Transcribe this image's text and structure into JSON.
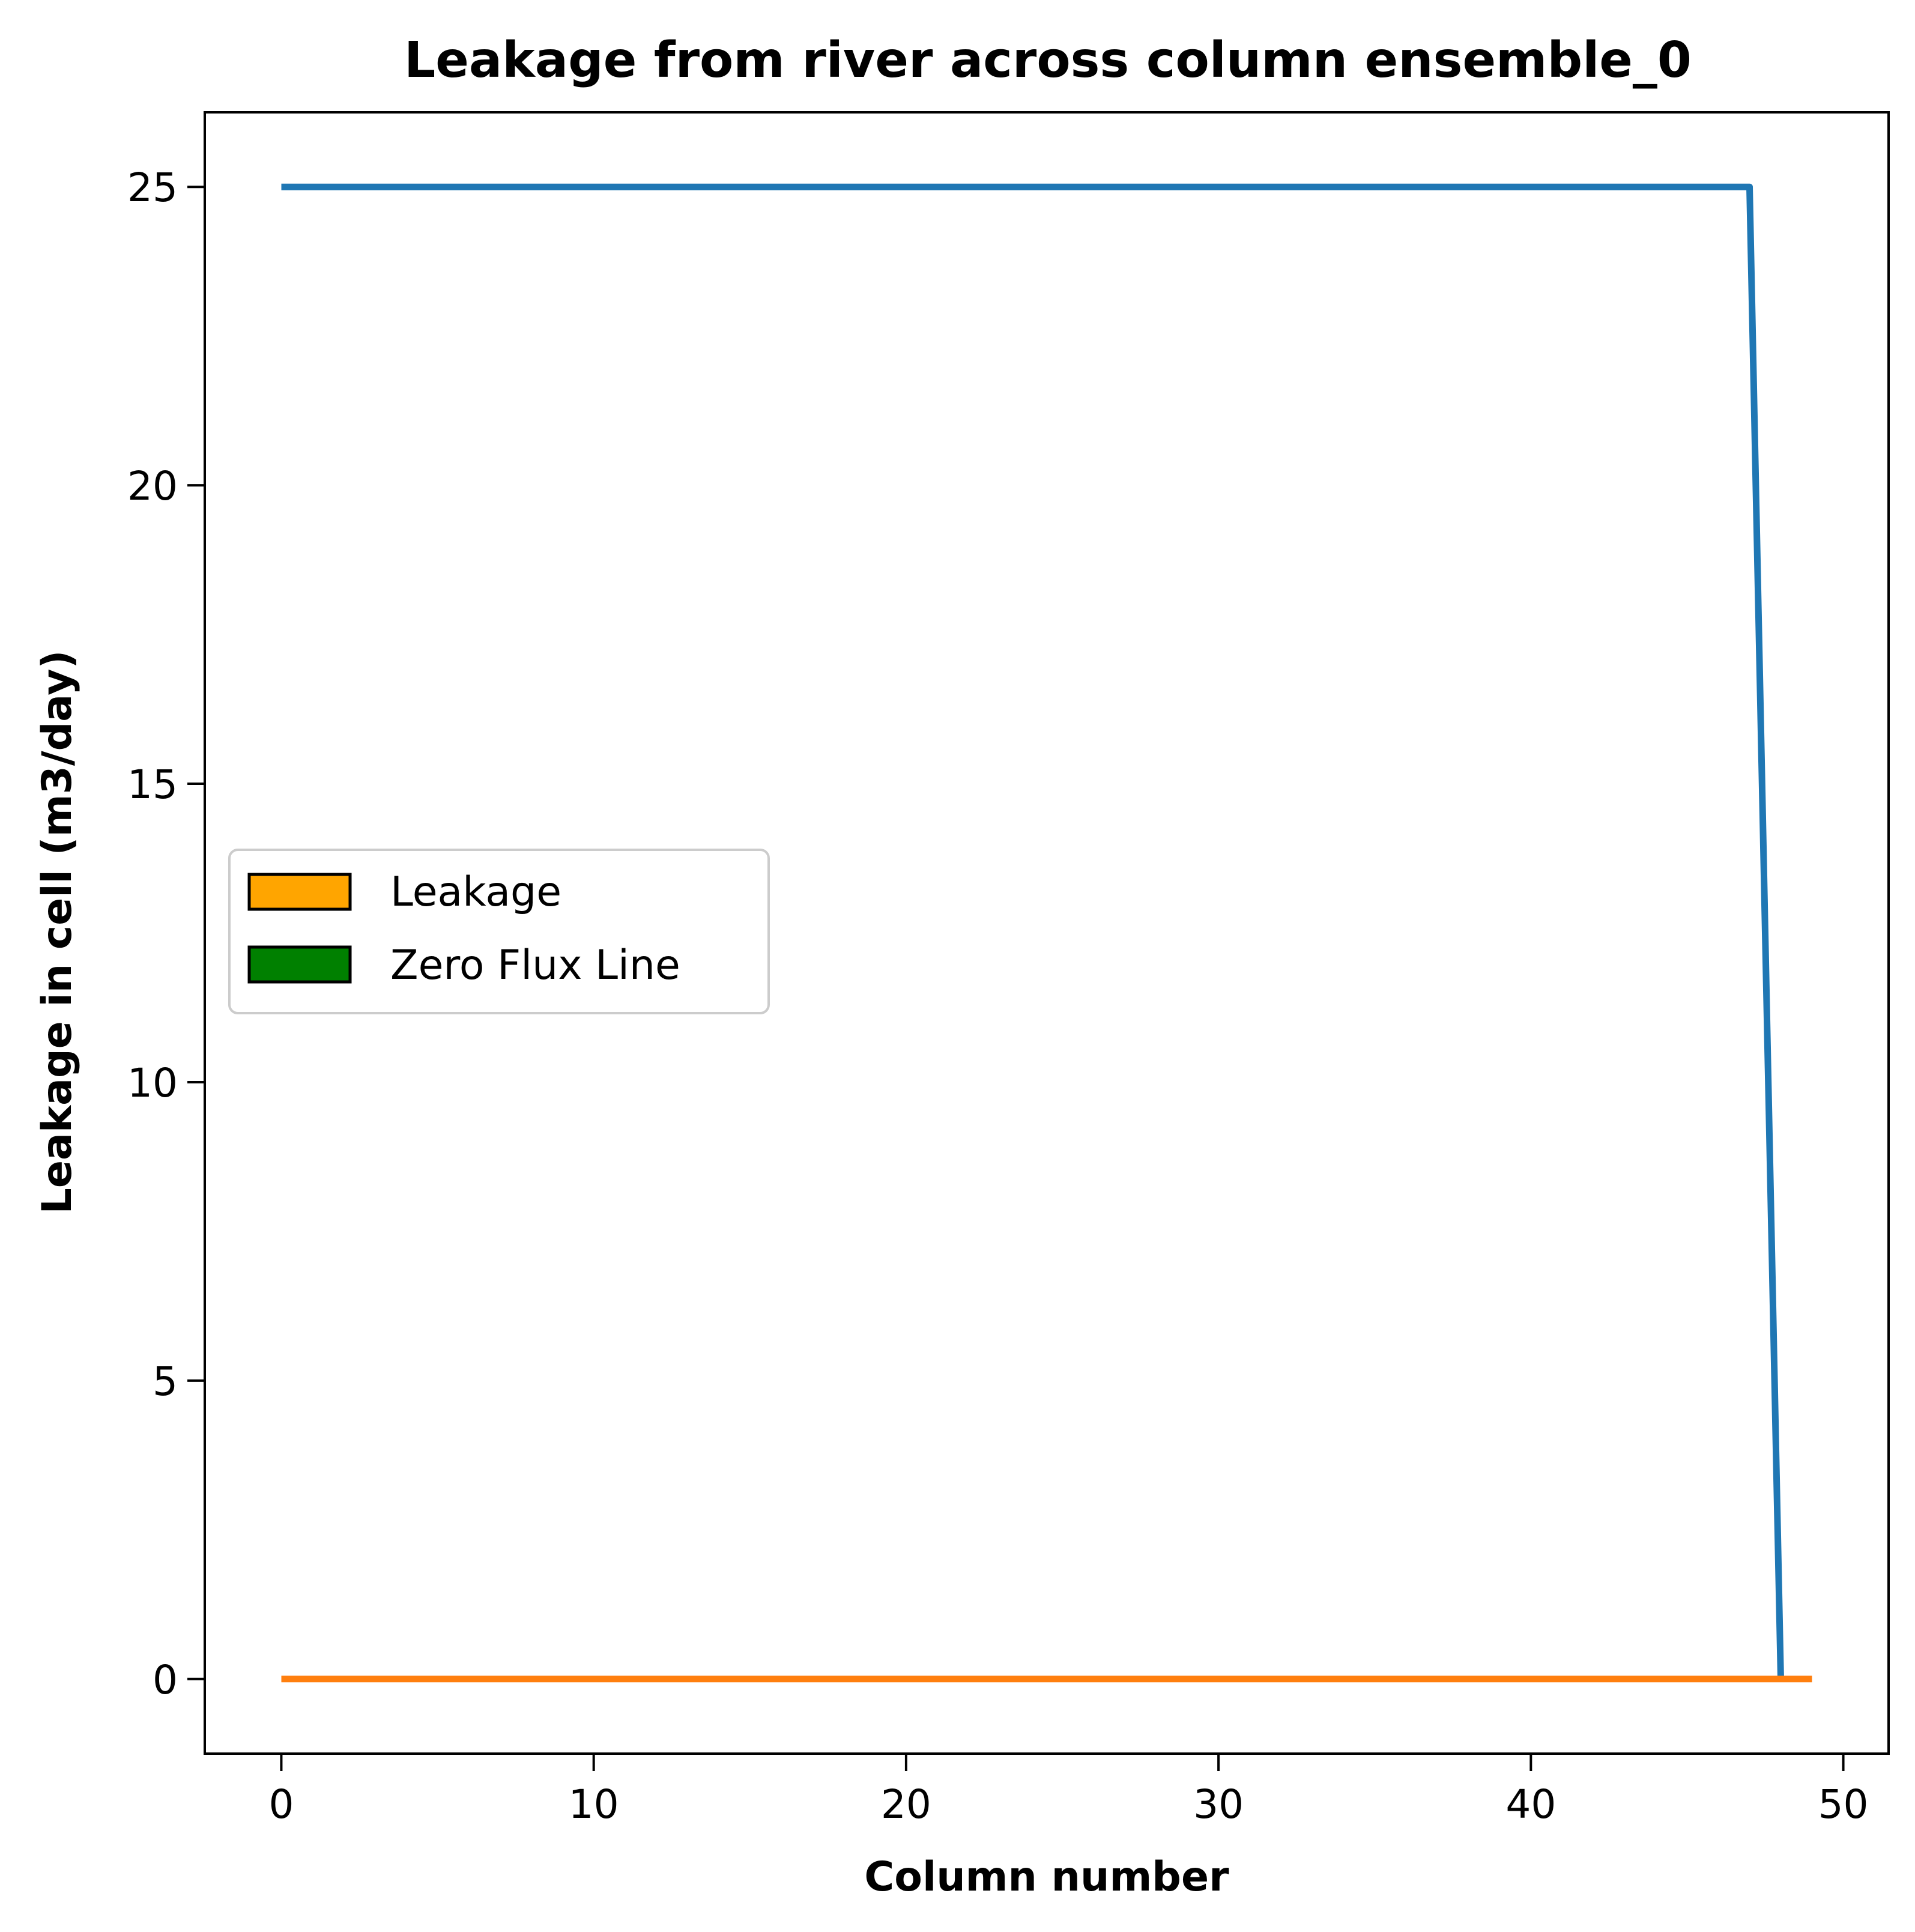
{
  "chart_data": {
    "type": "line",
    "title": "Leakage from river across column ensemble_0",
    "xlabel": "Column number",
    "ylabel": "Leakage in cell (m3/day)",
    "xlim": [
      -2.45,
      51.45
    ],
    "ylim": [
      -1.25,
      26.25
    ],
    "xticks": [
      0,
      10,
      20,
      30,
      40,
      50
    ],
    "yticks": [
      0,
      5,
      10,
      15,
      20,
      25
    ],
    "grid": false,
    "legend_placement": "center-left",
    "legend": [
      {
        "label": "Leakage",
        "color": "#ffa500"
      },
      {
        "label": "Zero Flux Line",
        "color": "#008000"
      }
    ],
    "series": [
      {
        "color": "#1f77b4",
        "x": [
          0,
          47,
          48
        ],
        "y": [
          25,
          25,
          0
        ]
      },
      {
        "color": "#ff7f0e",
        "x": [
          0,
          49
        ],
        "y": [
          0,
          0
        ]
      }
    ]
  }
}
